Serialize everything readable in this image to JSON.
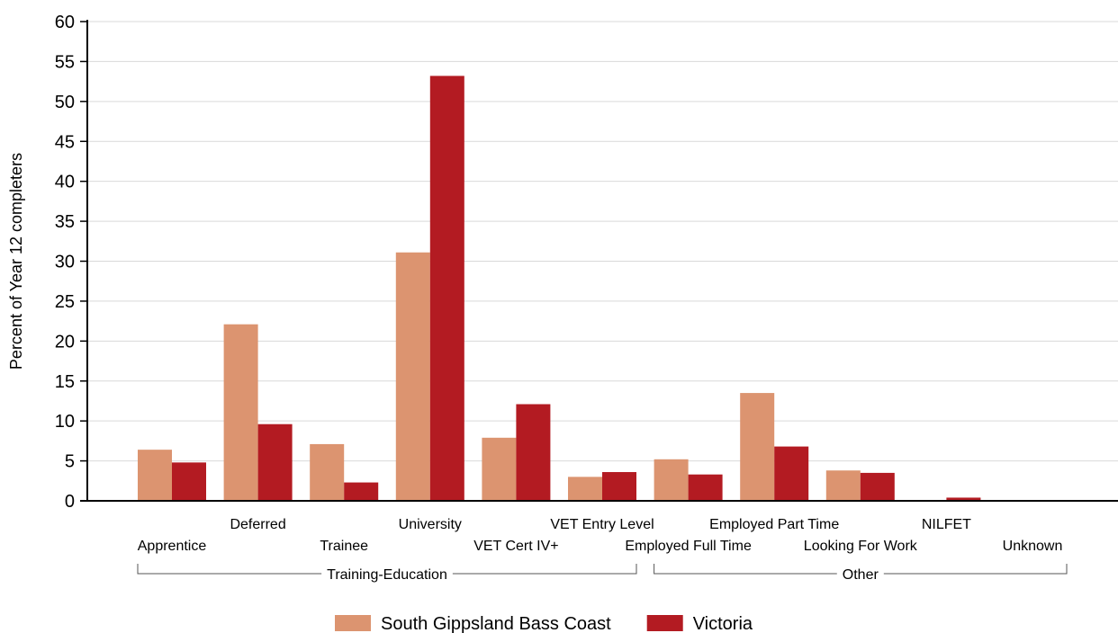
{
  "chart_data": {
    "type": "bar",
    "ylabel": "Percent of Year 12 completers",
    "ylim": [
      0,
      60
    ],
    "yticks": [
      0,
      5,
      10,
      15,
      20,
      25,
      30,
      35,
      40,
      45,
      50,
      55,
      60
    ],
    "grid": "horizontal",
    "categories": [
      "Apprentice",
      "Deferred",
      "Trainee",
      "University",
      "VET Cert IV+",
      "VET Entry Level",
      "Employed Full Time",
      "Employed Part Time",
      "Looking For Work",
      "NILFET",
      "Unknown"
    ],
    "groups": [
      {
        "label": "Training-Education",
        "categories": [
          "Apprentice",
          "Deferred",
          "Trainee",
          "University",
          "VET Cert IV+",
          "VET Entry Level"
        ]
      },
      {
        "label": "Other",
        "categories": [
          "Employed Full Time",
          "Employed Part Time",
          "Looking For Work",
          "NILFET",
          "Unknown"
        ]
      }
    ],
    "series": [
      {
        "name": "South Gippsland Bass Coast",
        "color": "#DC9470",
        "values": [
          6.4,
          22.1,
          7.1,
          31.1,
          7.9,
          3.0,
          5.2,
          13.5,
          3.8,
          0,
          0
        ]
      },
      {
        "name": "Victoria",
        "color": "#B31B22",
        "values": [
          4.8,
          9.6,
          2.3,
          53.2,
          12.1,
          3.6,
          3.3,
          6.8,
          3.5,
          0.4,
          0
        ]
      }
    ],
    "legend_position": "bottom-center"
  }
}
